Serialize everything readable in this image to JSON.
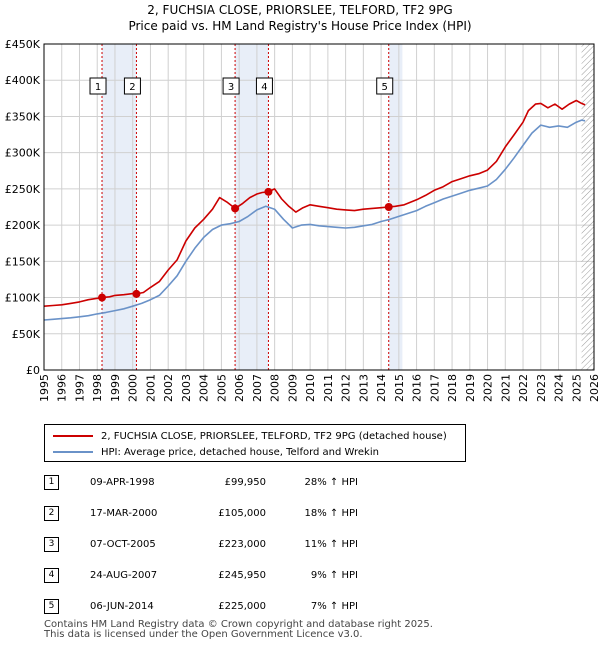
{
  "chart_data": {
    "type": "line",
    "title": "2, FUCHSIA CLOSE, PRIORSLEE, TELFORD, TF2 9PG",
    "subtitle": "Price paid vs. HM Land Registry's House Price Index (HPI)",
    "xlim": [
      1995,
      2026
    ],
    "ylim": [
      0,
      450000
    ],
    "y_ticks": [
      0,
      50000,
      100000,
      150000,
      200000,
      250000,
      300000,
      350000,
      400000,
      450000
    ],
    "y_tick_labels": [
      "£0",
      "£50K",
      "£100K",
      "£150K",
      "£200K",
      "£250K",
      "£300K",
      "£350K",
      "£400K",
      "£450K"
    ],
    "x_ticks": [
      1995,
      1996,
      1997,
      1998,
      1999,
      2000,
      2001,
      2002,
      2003,
      2004,
      2005,
      2006,
      2007,
      2008,
      2009,
      2010,
      2011,
      2012,
      2013,
      2014,
      2015,
      2016,
      2017,
      2018,
      2019,
      2020,
      2021,
      2022,
      2023,
      2024,
      2025,
      2026
    ],
    "x_tick_labels": [
      "1995",
      "1996",
      "1997",
      "1998",
      "1999",
      "2000",
      "2001",
      "2002",
      "2003",
      "2004",
      "2005",
      "2006",
      "2007",
      "2008",
      "2009",
      "2010",
      "2011",
      "2012",
      "2013",
      "2014",
      "2015",
      "2016",
      "2017",
      "2018",
      "2019",
      "2020",
      "2021",
      "2022",
      "2023",
      "2024",
      "2025",
      "2026"
    ],
    "grid": true,
    "series": [
      {
        "name": "2, FUCHSIA CLOSE, PRIORSLEE, TELFORD, TF2 9PG (detached house)",
        "color": "#cc0000",
        "x": [
          1995,
          1995.5,
          1996,
          1996.5,
          1997,
          1997.5,
          1998,
          1998.27,
          1998.7,
          1999,
          1999.5,
          2000,
          2000.21,
          2000.6,
          2001,
          2001.5,
          2002,
          2002.5,
          2003,
          2003.5,
          2004,
          2004.5,
          2004.9,
          2005.3,
          2005.77,
          2006.2,
          2006.6,
          2007,
          2007.3,
          2007.65,
          2008,
          2008.4,
          2008.8,
          2009.2,
          2009.6,
          2010,
          2010.5,
          2011,
          2011.5,
          2012,
          2012.5,
          2013,
          2013.5,
          2014,
          2014.43,
          2014.8,
          2015.3,
          2016,
          2016.5,
          2017,
          2017.5,
          2018,
          2018.5,
          2019,
          2019.5,
          2020,
          2020.5,
          2021,
          2021.5,
          2022,
          2022.3,
          2022.7,
          2023,
          2023.4,
          2023.8,
          2024.2,
          2024.6,
          2025,
          2025.3,
          2025.5
        ],
        "y": [
          88000,
          89000,
          90000,
          92000,
          94000,
          97000,
          99000,
          99950,
          101000,
          103000,
          104000,
          105500,
          105000,
          107000,
          114000,
          122000,
          138000,
          152000,
          178000,
          196000,
          208000,
          222000,
          238000,
          232000,
          223000,
          230000,
          238000,
          243000,
          245000,
          245950,
          250000,
          236000,
          226000,
          218000,
          224000,
          228000,
          226000,
          224000,
          222000,
          221000,
          220000,
          222000,
          223000,
          224000,
          225000,
          226000,
          228000,
          235000,
          241000,
          248000,
          253000,
          260000,
          264000,
          268000,
          271000,
          276000,
          288000,
          308000,
          325000,
          342000,
          358000,
          367000,
          368000,
          362000,
          367000,
          360000,
          367000,
          372000,
          368000,
          366000
        ]
      },
      {
        "name": "HPI: Average price, detached house, Telford and Wrekin",
        "color": "#6a92c8",
        "x": [
          1995,
          1995.5,
          1996,
          1996.5,
          1997,
          1997.5,
          1998,
          1998.5,
          1999,
          1999.5,
          2000,
          2000.5,
          2001,
          2001.5,
          2002,
          2002.5,
          2003,
          2003.5,
          2004,
          2004.5,
          2005,
          2005.5,
          2006,
          2006.5,
          2007,
          2007.5,
          2008,
          2008.5,
          2009,
          2009.5,
          2010,
          2010.5,
          2011,
          2011.5,
          2012,
          2012.5,
          2013,
          2013.5,
          2014,
          2014.5,
          2015,
          2015.5,
          2016,
          2016.5,
          2017,
          2017.5,
          2018,
          2018.5,
          2019,
          2019.5,
          2020,
          2020.5,
          2021,
          2021.5,
          2022,
          2022.5,
          2023,
          2023.5,
          2024,
          2024.5,
          2025,
          2025.3,
          2025.5
        ],
        "y": [
          69000,
          70000,
          71000,
          72000,
          73500,
          75000,
          77500,
          79500,
          82000,
          84500,
          88000,
          92000,
          97000,
          103000,
          116000,
          130000,
          150000,
          168000,
          183000,
          194000,
          200000,
          202000,
          205000,
          212000,
          221000,
          226000,
          222000,
          208000,
          196000,
          200000,
          201000,
          199000,
          198000,
          197000,
          196000,
          197000,
          199000,
          201000,
          205000,
          208000,
          212000,
          216000,
          220000,
          226000,
          231000,
          236000,
          240000,
          244000,
          248000,
          251000,
          254000,
          263000,
          277000,
          293000,
          310000,
          327000,
          338000,
          335000,
          337000,
          335000,
          342000,
          345000,
          344000
        ]
      }
    ],
    "sales": [
      {
        "label": "1",
        "x": 1998.27,
        "y": 99950
      },
      {
        "label": "2",
        "x": 2000.21,
        "y": 105000
      },
      {
        "label": "3",
        "x": 2005.77,
        "y": 223000
      },
      {
        "label": "4",
        "x": 2007.65,
        "y": 245950
      },
      {
        "label": "5",
        "x": 2014.43,
        "y": 225000
      }
    ],
    "shaded_bands": [
      [
        1998.27,
        2000.21
      ],
      [
        2005.77,
        2007.65
      ],
      [
        2014.43,
        2015.2
      ]
    ],
    "hatched_from": 2025.3
  },
  "legend": {
    "series_red": "2, FUCHSIA CLOSE, PRIORSLEE, TELFORD, TF2 9PG (detached house)",
    "series_blue": "HPI: Average price, detached house, Telford and Wrekin"
  },
  "transactions": [
    {
      "num": "1",
      "date": "09-APR-1998",
      "price": "£99,950",
      "hpi": "28% ↑ HPI"
    },
    {
      "num": "2",
      "date": "17-MAR-2000",
      "price": "£105,000",
      "hpi": "18% ↑ HPI"
    },
    {
      "num": "3",
      "date": "07-OCT-2005",
      "price": "£223,000",
      "hpi": "11% ↑ HPI"
    },
    {
      "num": "4",
      "date": "24-AUG-2007",
      "price": "£245,950",
      "hpi": "9% ↑ HPI"
    },
    {
      "num": "5",
      "date": "06-JUN-2014",
      "price": "£225,000",
      "hpi": "7% ↑ HPI"
    }
  ],
  "footer": {
    "line1": "Contains HM Land Registry data © Crown copyright and database right 2025.",
    "line2": "This data is licensed under the Open Government Licence v3.0."
  },
  "colors": {
    "red": "#cc0000",
    "blue": "#6a92c8",
    "band": "#e8eef8",
    "grid": "#d0d0d0"
  }
}
